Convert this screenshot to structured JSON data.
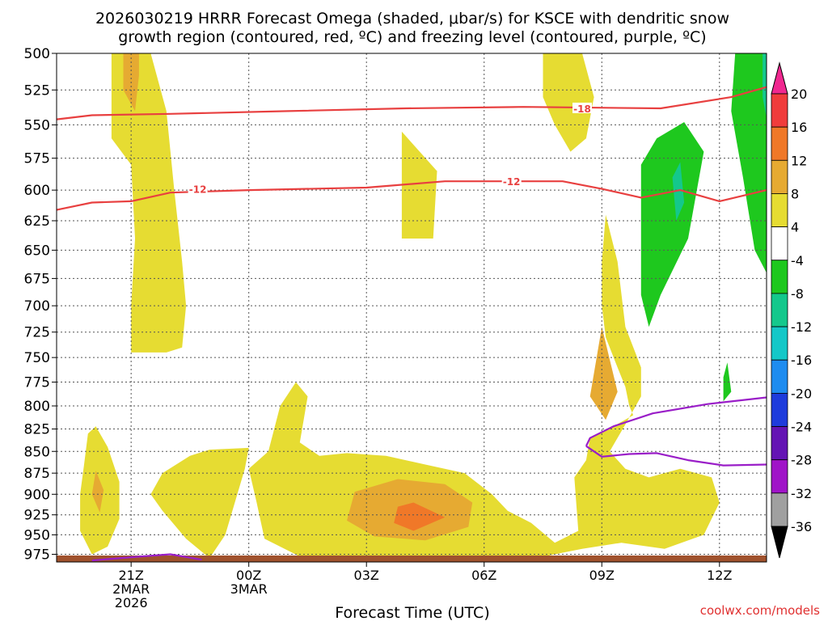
{
  "chart_data": {
    "type": "heatmap",
    "title": {
      "line1": "2026030219 HRRR Forecast Omega (shaded, μbar/s) for KSCE with dendritic snow",
      "line2": "growth region (contoured, red, ºC) and freezing level (contoured, purple, ºC)"
    },
    "xlabel": "Forecast Time (UTC)",
    "ylabel": "",
    "credit": "coolwx.com/models",
    "x_range_hours": [
      -1.9,
      16.2
    ],
    "y_range_hpa": [
      985,
      500
    ],
    "y_ticks": [
      500,
      525,
      550,
      575,
      600,
      625,
      650,
      675,
      700,
      725,
      750,
      775,
      800,
      825,
      850,
      875,
      900,
      925,
      950,
      975
    ],
    "x_ticks": [
      {
        "hour": 0,
        "label": "21Z",
        "sub1": "2MAR",
        "sub2": "2026"
      },
      {
        "hour": 3,
        "label": "00Z",
        "sub1": "3MAR",
        "sub2": ""
      },
      {
        "hour": 6,
        "label": "03Z",
        "sub1": "",
        "sub2": ""
      },
      {
        "hour": 9,
        "label": "06Z",
        "sub1": "",
        "sub2": ""
      },
      {
        "hour": 12,
        "label": "09Z",
        "sub1": "",
        "sub2": ""
      },
      {
        "hour": 15,
        "label": "12Z",
        "sub1": "",
        "sub2": ""
      }
    ],
    "colorbar": {
      "labels": [
        "20",
        "16",
        "12",
        "8",
        "4",
        "-4",
        "-8",
        "-12",
        "-16",
        "-20",
        "-24",
        "-28",
        "-32",
        "-36"
      ],
      "colors": [
        "#f02890",
        "#f03c3c",
        "#f07828",
        "#e6aa32",
        "#e6dc32",
        "#ffffff",
        "#1ec81e",
        "#14c88c",
        "#14c8c8",
        "#1e8cf0",
        "#1e3cdc",
        "#6414b4",
        "#a014c8",
        "#a0a0a0",
        "#000000"
      ]
    },
    "series": [
      {
        "name": "-18 °C isotherm",
        "color": "#e84040",
        "label": "-18",
        "points": [
          [
            -1.9,
            546
          ],
          [
            -1,
            543
          ],
          [
            1,
            542
          ],
          [
            4,
            540
          ],
          [
            7,
            538
          ],
          [
            10,
            537
          ],
          [
            13.5,
            538
          ],
          [
            15.3,
            530
          ],
          [
            16.2,
            523
          ]
        ]
      },
      {
        "name": "-12 °C isotherm",
        "color": "#e84040",
        "label": "-12",
        "points": [
          [
            -1.9,
            616
          ],
          [
            -1,
            610
          ],
          [
            0,
            609
          ],
          [
            1,
            602
          ],
          [
            3,
            600
          ],
          [
            6,
            598
          ],
          [
            8,
            593
          ],
          [
            11,
            593
          ],
          [
            12,
            599
          ],
          [
            13,
            606
          ],
          [
            14,
            600
          ],
          [
            15,
            609
          ],
          [
            16.2,
            600
          ]
        ]
      },
      {
        "name": "Freezing level (0 °C)",
        "color": "#9a1ec8",
        "label": "",
        "points": [
          [
            11.6,
            844
          ],
          [
            11.7,
            835
          ],
          [
            12.3,
            822
          ],
          [
            13.3,
            808
          ],
          [
            14.7,
            798
          ],
          [
            16.2,
            791
          ]
        ]
      },
      {
        "name": "Freezing level lower branch",
        "color": "#9a1ec8",
        "label": "",
        "points": [
          [
            11.6,
            844
          ],
          [
            12.0,
            856
          ],
          [
            12.7,
            853
          ],
          [
            13.4,
            852
          ],
          [
            14.2,
            860
          ],
          [
            15.1,
            866
          ],
          [
            16.2,
            865
          ]
        ]
      },
      {
        "name": "Freezing level near surface",
        "color": "#9a1ec8",
        "label": "",
        "points": [
          [
            -1.0,
            983
          ],
          [
            0.2,
            978
          ],
          [
            1.0,
            975
          ],
          [
            1.8,
            982
          ]
        ]
      }
    ],
    "shaded_regions": [
      {
        "omega_range": "4 to 8",
        "color": "#e6dc32",
        "points": [
          [
            -0.5,
            500
          ],
          [
            0.5,
            500
          ],
          [
            0.9,
            540
          ],
          [
            1.1,
            600
          ],
          [
            1.3,
            660
          ],
          [
            1.4,
            700
          ],
          [
            1.3,
            740
          ],
          [
            0.9,
            745
          ],
          [
            0.0,
            745
          ],
          [
            0.0,
            700
          ],
          [
            0.1,
            640
          ],
          [
            0.0,
            580
          ],
          [
            -0.5,
            560
          ]
        ]
      },
      {
        "omega_range": "8 to 12",
        "color": "#e6aa32",
        "points": [
          [
            -0.2,
            500
          ],
          [
            0.2,
            500
          ],
          [
            0.2,
            515
          ],
          [
            0.1,
            540
          ],
          [
            -0.2,
            525
          ]
        ]
      },
      {
        "omega_range": "4 to 8",
        "color": "#e6dc32",
        "points": [
          [
            -1.2,
            865
          ],
          [
            -1.1,
            830
          ],
          [
            -0.9,
            822
          ],
          [
            -0.6,
            845
          ],
          [
            -0.3,
            885
          ],
          [
            -0.3,
            930
          ],
          [
            -0.6,
            965
          ],
          [
            -1.0,
            975
          ],
          [
            -1.3,
            945
          ],
          [
            -1.3,
            900
          ]
        ]
      },
      {
        "omega_range": "8 to 12",
        "color": "#e6aa32",
        "points": [
          [
            -0.9,
            872
          ],
          [
            -0.7,
            895
          ],
          [
            -0.8,
            922
          ],
          [
            -1.0,
            900
          ]
        ]
      },
      {
        "omega_range": "4 to 8",
        "color": "#e6dc32",
        "points": [
          [
            0.8,
            875
          ],
          [
            1.5,
            855
          ],
          [
            2.0,
            848
          ],
          [
            3.0,
            846
          ],
          [
            2.9,
            870
          ],
          [
            2.4,
            950
          ],
          [
            2.0,
            980
          ],
          [
            1.4,
            955
          ],
          [
            0.8,
            920
          ],
          [
            0.5,
            900
          ]
        ]
      },
      {
        "omega_range": "4 to 8",
        "color": "#e6dc32",
        "points": [
          [
            3.0,
            870
          ],
          [
            3.5,
            850
          ],
          [
            3.8,
            800
          ],
          [
            4.2,
            775
          ],
          [
            4.5,
            790
          ],
          [
            4.3,
            840
          ],
          [
            4.8,
            855
          ],
          [
            5.5,
            852
          ],
          [
            6.5,
            855
          ],
          [
            7.5,
            865
          ],
          [
            8.5,
            875
          ],
          [
            9.2,
            900
          ],
          [
            9.6,
            920
          ],
          [
            10.2,
            935
          ],
          [
            10.8,
            960
          ],
          [
            11.4,
            945
          ],
          [
            11.3,
            880
          ],
          [
            11.6,
            860
          ],
          [
            11.7,
            835
          ],
          [
            12.3,
            822
          ],
          [
            12.8,
            810
          ],
          [
            12.7,
            800
          ],
          [
            12.6,
            780
          ],
          [
            12.4,
            760
          ],
          [
            12.1,
            730
          ],
          [
            12.0,
            700
          ],
          [
            12.0,
            660
          ],
          [
            12.1,
            620
          ],
          [
            12.4,
            660
          ],
          [
            12.6,
            720
          ],
          [
            13.0,
            760
          ],
          [
            13.0,
            790
          ],
          [
            12.6,
            820
          ],
          [
            12.2,
            850
          ],
          [
            12.6,
            870
          ],
          [
            13.2,
            880
          ],
          [
            14.0,
            870
          ],
          [
            14.8,
            880
          ],
          [
            15.0,
            910
          ],
          [
            14.6,
            950
          ],
          [
            13.6,
            968
          ],
          [
            12.5,
            960
          ],
          [
            11.5,
            968
          ],
          [
            10.5,
            978
          ],
          [
            9.0,
            985
          ],
          [
            6.0,
            985
          ],
          [
            4.5,
            983
          ],
          [
            3.4,
            955
          ],
          [
            3.2,
            910
          ]
        ]
      },
      {
        "omega_range": "8 to 12",
        "color": "#e6aa32",
        "points": [
          [
            5.7,
            897
          ],
          [
            6.8,
            882
          ],
          [
            8.0,
            888
          ],
          [
            8.7,
            910
          ],
          [
            8.6,
            940
          ],
          [
            7.5,
            957
          ],
          [
            6.2,
            952
          ],
          [
            5.5,
            932
          ]
        ]
      },
      {
        "omega_range": "12 to 16",
        "color": "#f07828",
        "points": [
          [
            6.8,
            915
          ],
          [
            7.2,
            910
          ],
          [
            8.0,
            928
          ],
          [
            7.2,
            945
          ],
          [
            6.7,
            935
          ]
        ]
      },
      {
        "omega_range": "4 to 8",
        "color": "#e6dc32",
        "points": [
          [
            6.9,
            555
          ],
          [
            7.8,
            585
          ],
          [
            7.7,
            640
          ],
          [
            6.9,
            640
          ],
          [
            6.9,
            600
          ]
        ]
      },
      {
        "omega_range": "4 to 8",
        "color": "#e6dc32",
        "points": [
          [
            10.5,
            500
          ],
          [
            11.5,
            500
          ],
          [
            11.8,
            530
          ],
          [
            11.6,
            560
          ],
          [
            11.2,
            570
          ],
          [
            10.8,
            550
          ],
          [
            10.5,
            530
          ]
        ]
      },
      {
        "omega_range": "8 to 12",
        "color": "#e6aa32",
        "points": [
          [
            12.0,
            720
          ],
          [
            12.4,
            785
          ],
          [
            12.1,
            815
          ],
          [
            11.7,
            790
          ]
        ]
      },
      {
        "omega_range": "-4 to -8",
        "color": "#1ec81e",
        "points": [
          [
            13.0,
            580
          ],
          [
            13.4,
            560
          ],
          [
            14.1,
            548
          ],
          [
            14.6,
            570
          ],
          [
            14.2,
            640
          ],
          [
            13.5,
            690
          ],
          [
            13.2,
            720
          ],
          [
            13.0,
            690
          ]
        ]
      },
      {
        "omega_range": "-8 to -12",
        "color": "#14c88c",
        "points": [
          [
            13.8,
            590
          ],
          [
            14.0,
            578
          ],
          [
            14.1,
            610
          ],
          [
            13.9,
            625
          ]
        ]
      },
      {
        "omega_range": "-4 to -8",
        "color": "#1ec81e",
        "points": [
          [
            15.4,
            500
          ],
          [
            16.2,
            500
          ],
          [
            16.2,
            670
          ],
          [
            15.9,
            650
          ],
          [
            15.6,
            590
          ],
          [
            15.3,
            540
          ]
        ]
      },
      {
        "omega_range": "-8 to -12",
        "color": "#14c88c",
        "points": [
          [
            16.1,
            500
          ],
          [
            16.2,
            500
          ],
          [
            16.2,
            545
          ],
          [
            16.1,
            530
          ]
        ]
      },
      {
        "omega_range": "-4 to -8",
        "color": "#1ec81e",
        "points": [
          [
            15.1,
            770
          ],
          [
            15.2,
            755
          ],
          [
            15.3,
            785
          ],
          [
            15.1,
            795
          ]
        ]
      }
    ]
  }
}
